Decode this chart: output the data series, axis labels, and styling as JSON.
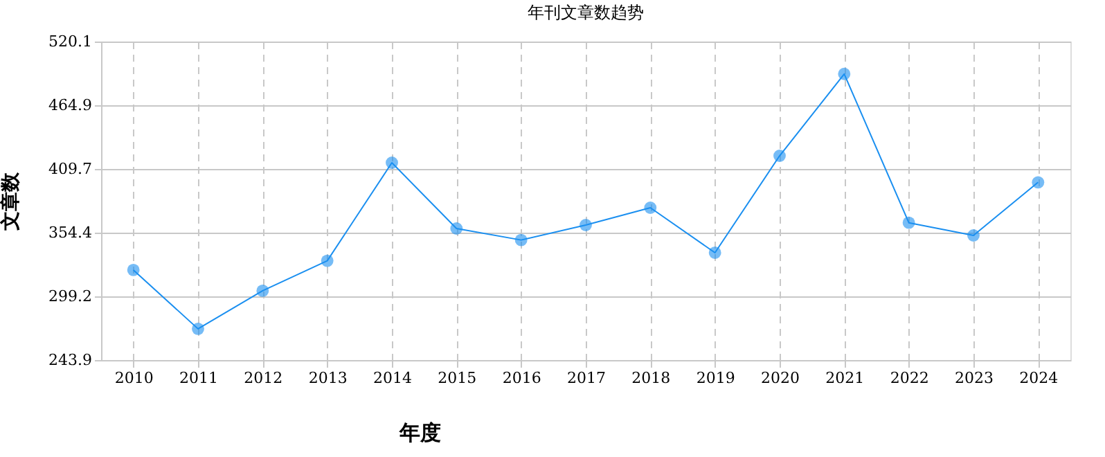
{
  "chart_data": {
    "type": "line",
    "title": "年刊文章数趋势",
    "xlabel": "年度",
    "ylabel": "文章数",
    "categories": [
      "2010",
      "2011",
      "2012",
      "2013",
      "2014",
      "2015",
      "2016",
      "2017",
      "2018",
      "2019",
      "2020",
      "2021",
      "2022",
      "2023",
      "2024"
    ],
    "series": [
      {
        "color": "#1a8ff0",
        "values": [
          322,
          271,
          304,
          330,
          415,
          358,
          348,
          361,
          376,
          337,
          421,
          492,
          363,
          352,
          398
        ]
      }
    ],
    "ylim": [
      243.9,
      520.1
    ],
    "yticks": [
      243.9,
      299.2,
      354.4,
      409.7,
      464.9,
      520.1
    ],
    "grid": true,
    "marker": "circle",
    "line_style": "solid",
    "legend": false
  }
}
